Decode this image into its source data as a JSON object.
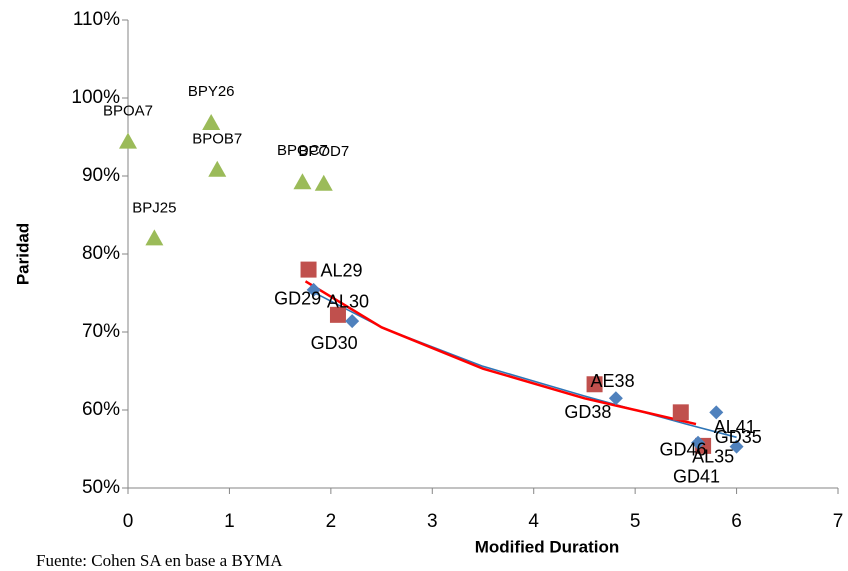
{
  "chart_data": {
    "type": "scatter",
    "xlabel": "Modified Duration",
    "ylabel": "Paridad",
    "source": "Fuente: Cohen SA en base a BYMA",
    "xlim": [
      0,
      7
    ],
    "xticks": [
      0,
      1,
      2,
      3,
      4,
      5,
      6,
      7
    ],
    "ylim": [
      50,
      110
    ],
    "yticks": [
      {
        "value": 50,
        "label": "50%"
      },
      {
        "value": 60,
        "label": "60%"
      },
      {
        "value": 70,
        "label": "70%"
      },
      {
        "value": 80,
        "label": "80%"
      },
      {
        "value": 90,
        "label": "90%"
      },
      {
        "value": 100,
        "label": "100%"
      },
      {
        "value": 110,
        "label": "110%"
      }
    ],
    "grid": false,
    "series": [
      {
        "color": "#9bbb59",
        "marker": "triangle",
        "labels": [
          "BPOA7",
          "BPY26",
          "BPOB7",
          "BPOC7",
          "BPOD7",
          "BPJ25"
        ],
        "x": [
          0.0,
          0.82,
          0.88,
          1.72,
          1.93,
          0.26
        ],
        "values": [
          94.4,
          96.8,
          90.8,
          89.2,
          89.0,
          82.0
        ]
      },
      {
        "color": "#c0504d",
        "marker": "square",
        "labels": [
          "AL29",
          "AL30",
          "AE38",
          "AL41",
          "AL35"
        ],
        "x": [
          1.78,
          2.07,
          4.6,
          5.45,
          5.67
        ],
        "values": [
          78.0,
          72.2,
          63.3,
          59.7,
          55.4
        ]
      },
      {
        "color": "#4f81bd",
        "marker": "diamond",
        "labels": [
          "GD29",
          "GD30",
          "GD38",
          "GD35",
          "GD41",
          "GD46"
        ],
        "x": [
          1.83,
          2.21,
          4.81,
          5.8,
          6.0,
          5.62
        ],
        "values": [
          75.4,
          71.4,
          61.5,
          59.7,
          55.3,
          55.8
        ]
      }
    ],
    "trendlines": [
      {
        "color": "#2e75b6",
        "x": [
          1.8,
          2.5,
          3.5,
          4.5,
          5.5,
          6.0
        ],
        "values": [
          75.3,
          70.6,
          65.6,
          61.8,
          58.2,
          56.5
        ]
      },
      {
        "color": "#ff0000",
        "x": [
          1.75,
          2.5,
          3.5,
          4.5,
          5.6
        ],
        "values": [
          76.5,
          70.6,
          65.3,
          61.5,
          58.2
        ]
      }
    ]
  }
}
